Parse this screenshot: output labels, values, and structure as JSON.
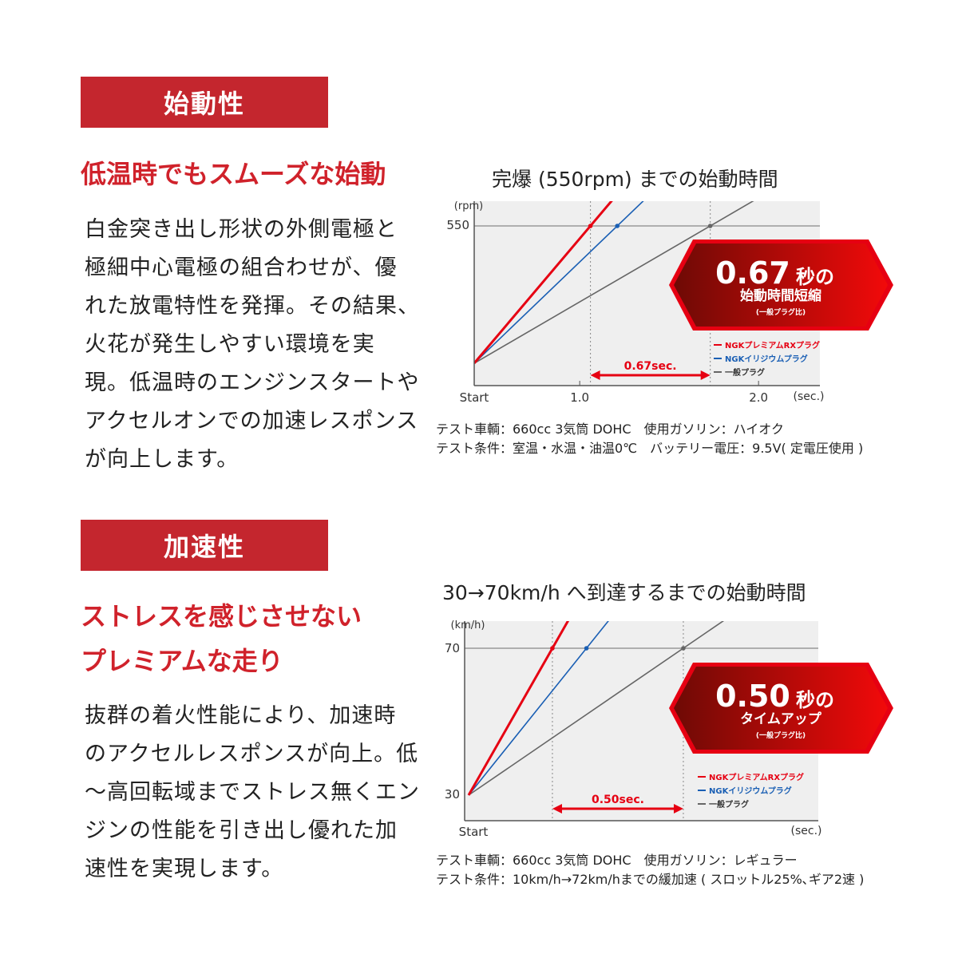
{
  "section1": {
    "header": "始動性",
    "subtitle_lines": [
      "低温時でもスムーズな始動"
    ],
    "body_lines": [
      "白金突き出し形状の外側電極と",
      "極細中心電極の組合わせが、優",
      "れた放電特性を発揮。その結果、",
      "火花が発生しやすい環境を実",
      "現。低温時のエンジンスタートや",
      "アクセルオンでの加速レスポンス",
      "が向上します。"
    ],
    "notes": [
      "テスト車輌：660cc 3気筒 DOHC　使用ガソリン：ハイオク",
      "テスト条件：室温・水温・油温0℃　バッテリー電圧：9.5V( 定電圧使用 )"
    ]
  },
  "section2": {
    "header": "加速性",
    "subtitle_lines": [
      "ストレスを感じさせない",
      "プレミアムな走り"
    ],
    "body_lines": [
      "抜群の着火性能により、加速時",
      "のアクセルレスポンスが向上。低",
      "〜高回転域までストレス無くエン",
      "ジンの性能を引き出し優れた加",
      "速性を実現します。"
    ],
    "notes": [
      "テスト車輌：660cc 3気筒 DOHC　使用ガソリン：レギュラー",
      "テスト条件：10km/h→72km/hまでの緩加速 ( スロットル25%､ギア2速 )"
    ]
  },
  "colors": {
    "accent": "#c4262e",
    "red_series": "#e60012",
    "blue_series": "#1a5fb4",
    "gray_series": "#666666",
    "plot_bg": "#efefef"
  },
  "chart_data": [
    {
      "type": "line",
      "title": "完爆 (550rpm) までの始動時間",
      "ylabel": "(rpm)",
      "xlabel": "(sec.)",
      "x_tick_labels": [
        "Start",
        "1.0",
        "2.0"
      ],
      "y_tick_labels": [
        "550"
      ],
      "target_value": 550,
      "series": [
        {
          "name": "NGKプレミアムRXプラグ",
          "time_to_target": 1.06
        },
        {
          "name": "NGKイリジウムプラグ",
          "time_to_target": 1.21
        },
        {
          "name": "一般プラグ",
          "time_to_target": 1.73
        }
      ],
      "difference_label": "0.67sec.",
      "badge": {
        "big": "0.67",
        "unit": "秒の",
        "line2": "始動時間短縮",
        "line3": "(一般プラグ比)"
      },
      "legend_position": "bottom-right"
    },
    {
      "type": "line",
      "title": "30→70km/h へ到達するまでの始動時間",
      "ylabel": "(km/h)",
      "xlabel": "(sec.)",
      "x_tick_labels": [
        "Start"
      ],
      "y_tick_labels": [
        "70",
        "30"
      ],
      "y_start": 30,
      "target_value": 70,
      "series": [
        {
          "name": "NGKプレミアムRXプラグ",
          "time_to_target": 0.32
        },
        {
          "name": "NGKイリジウムプラグ",
          "time_to_target": 0.45
        },
        {
          "name": "一般プラグ",
          "time_to_target": 0.82
        }
      ],
      "difference_label": "0.50sec.",
      "badge": {
        "big": "0.50",
        "unit": "秒の",
        "line2": "タイムアップ",
        "line3": "(一般プラグ比)"
      },
      "legend_position": "bottom-right"
    }
  ]
}
